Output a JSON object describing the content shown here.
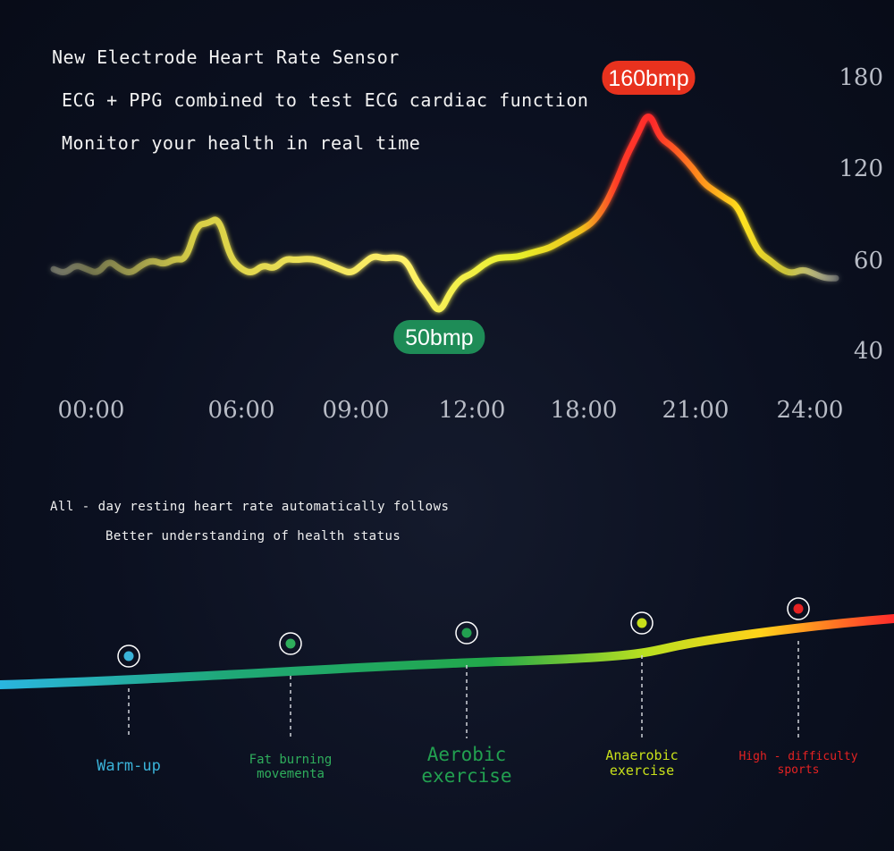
{
  "intro": {
    "line1": "New Electrode Heart Rate Sensor",
    "line2": "ECG + PPG combined to test ECG cardiac function",
    "line3": "Monitor your health in real time"
  },
  "chart_data": {
    "type": "line",
    "title": "",
    "xlabel": "",
    "ylabel": "",
    "x_ticks": [
      "00:00",
      "06:00",
      "09:00",
      "12:00",
      "18:00",
      "21:00",
      "24:00"
    ],
    "y_ticks": [
      "180",
      "120",
      "60",
      "40"
    ],
    "max_label": "160bmp",
    "min_label": "50bmp",
    "max_value": 160,
    "min_value": 50,
    "grid": false,
    "series": [
      {
        "values": [
          58,
          57,
          59,
          58,
          57,
          60,
          58,
          57,
          59,
          60,
          59,
          61,
          60,
          83,
          84,
          88,
          62,
          58,
          57,
          59,
          58,
          61,
          60,
          61,
          60,
          59,
          58,
          57,
          59,
          63,
          61,
          62,
          60,
          55,
          52,
          48,
          53,
          56,
          57,
          59,
          61,
          62,
          62,
          64,
          66,
          68,
          72,
          76,
          80,
          85,
          95,
          110,
          128,
          142,
          158,
          140,
          135,
          128,
          120,
          110,
          105,
          100,
          96,
          80,
          65,
          60,
          58,
          57,
          58,
          57,
          56,
          56
        ]
      }
    ]
  },
  "mid_text": {
    "line1": "All - day resting heart rate automatically follows",
    "line2": "Better understanding of health status"
  },
  "zones": [
    {
      "label": "Warm-up",
      "color": "#3ab3d9"
    },
    {
      "label": "Fat burning\nmovementa",
      "color": "#2fae5c"
    },
    {
      "label": "Aerobic\nexercise",
      "color": "#22a050"
    },
    {
      "label": "Anaerobic\nexercise",
      "color": "#c8e01a"
    },
    {
      "label": "High - difficulty\nsports",
      "color": "#e52222"
    }
  ]
}
